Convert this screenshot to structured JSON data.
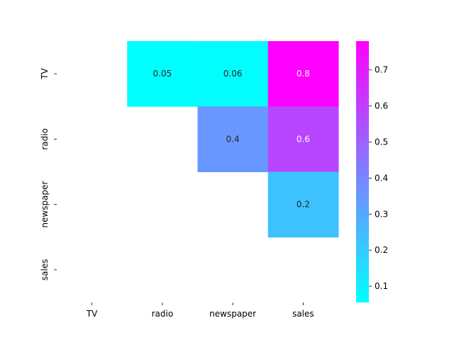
{
  "chart_data": {
    "type": "heatmap",
    "title": "",
    "xlabel": "",
    "ylabel": "",
    "x_categories": [
      "TV",
      "radio",
      "newspaper",
      "sales"
    ],
    "y_categories": [
      "TV",
      "radio",
      "newspaper",
      "sales"
    ],
    "mask": "lower-triangle-and-diagonal",
    "cells": [
      {
        "row": "TV",
        "col": "radio",
        "value": 0.05,
        "label": "0.05"
      },
      {
        "row": "TV",
        "col": "newspaper",
        "value": 0.06,
        "label": "0.06"
      },
      {
        "row": "TV",
        "col": "sales",
        "value": 0.78,
        "label": "0.8"
      },
      {
        "row": "radio",
        "col": "newspaper",
        "value": 0.35,
        "label": "0.4"
      },
      {
        "row": "radio",
        "col": "sales",
        "value": 0.58,
        "label": "0.6"
      },
      {
        "row": "newspaper",
        "col": "sales",
        "value": 0.23,
        "label": "0.2"
      }
    ],
    "colormap": "cool",
    "colormap_colors": [
      "#00ffff",
      "#ff00ff"
    ],
    "colorbar": {
      "range": [
        0.055,
        0.78
      ],
      "ticks": [
        0.1,
        0.2,
        0.3,
        0.4,
        0.5,
        0.6,
        0.7
      ],
      "tick_labels": [
        "0.1",
        "0.2",
        "0.3",
        "0.4",
        "0.5",
        "0.6",
        "0.7"
      ],
      "placement": "right"
    },
    "grid": false
  }
}
